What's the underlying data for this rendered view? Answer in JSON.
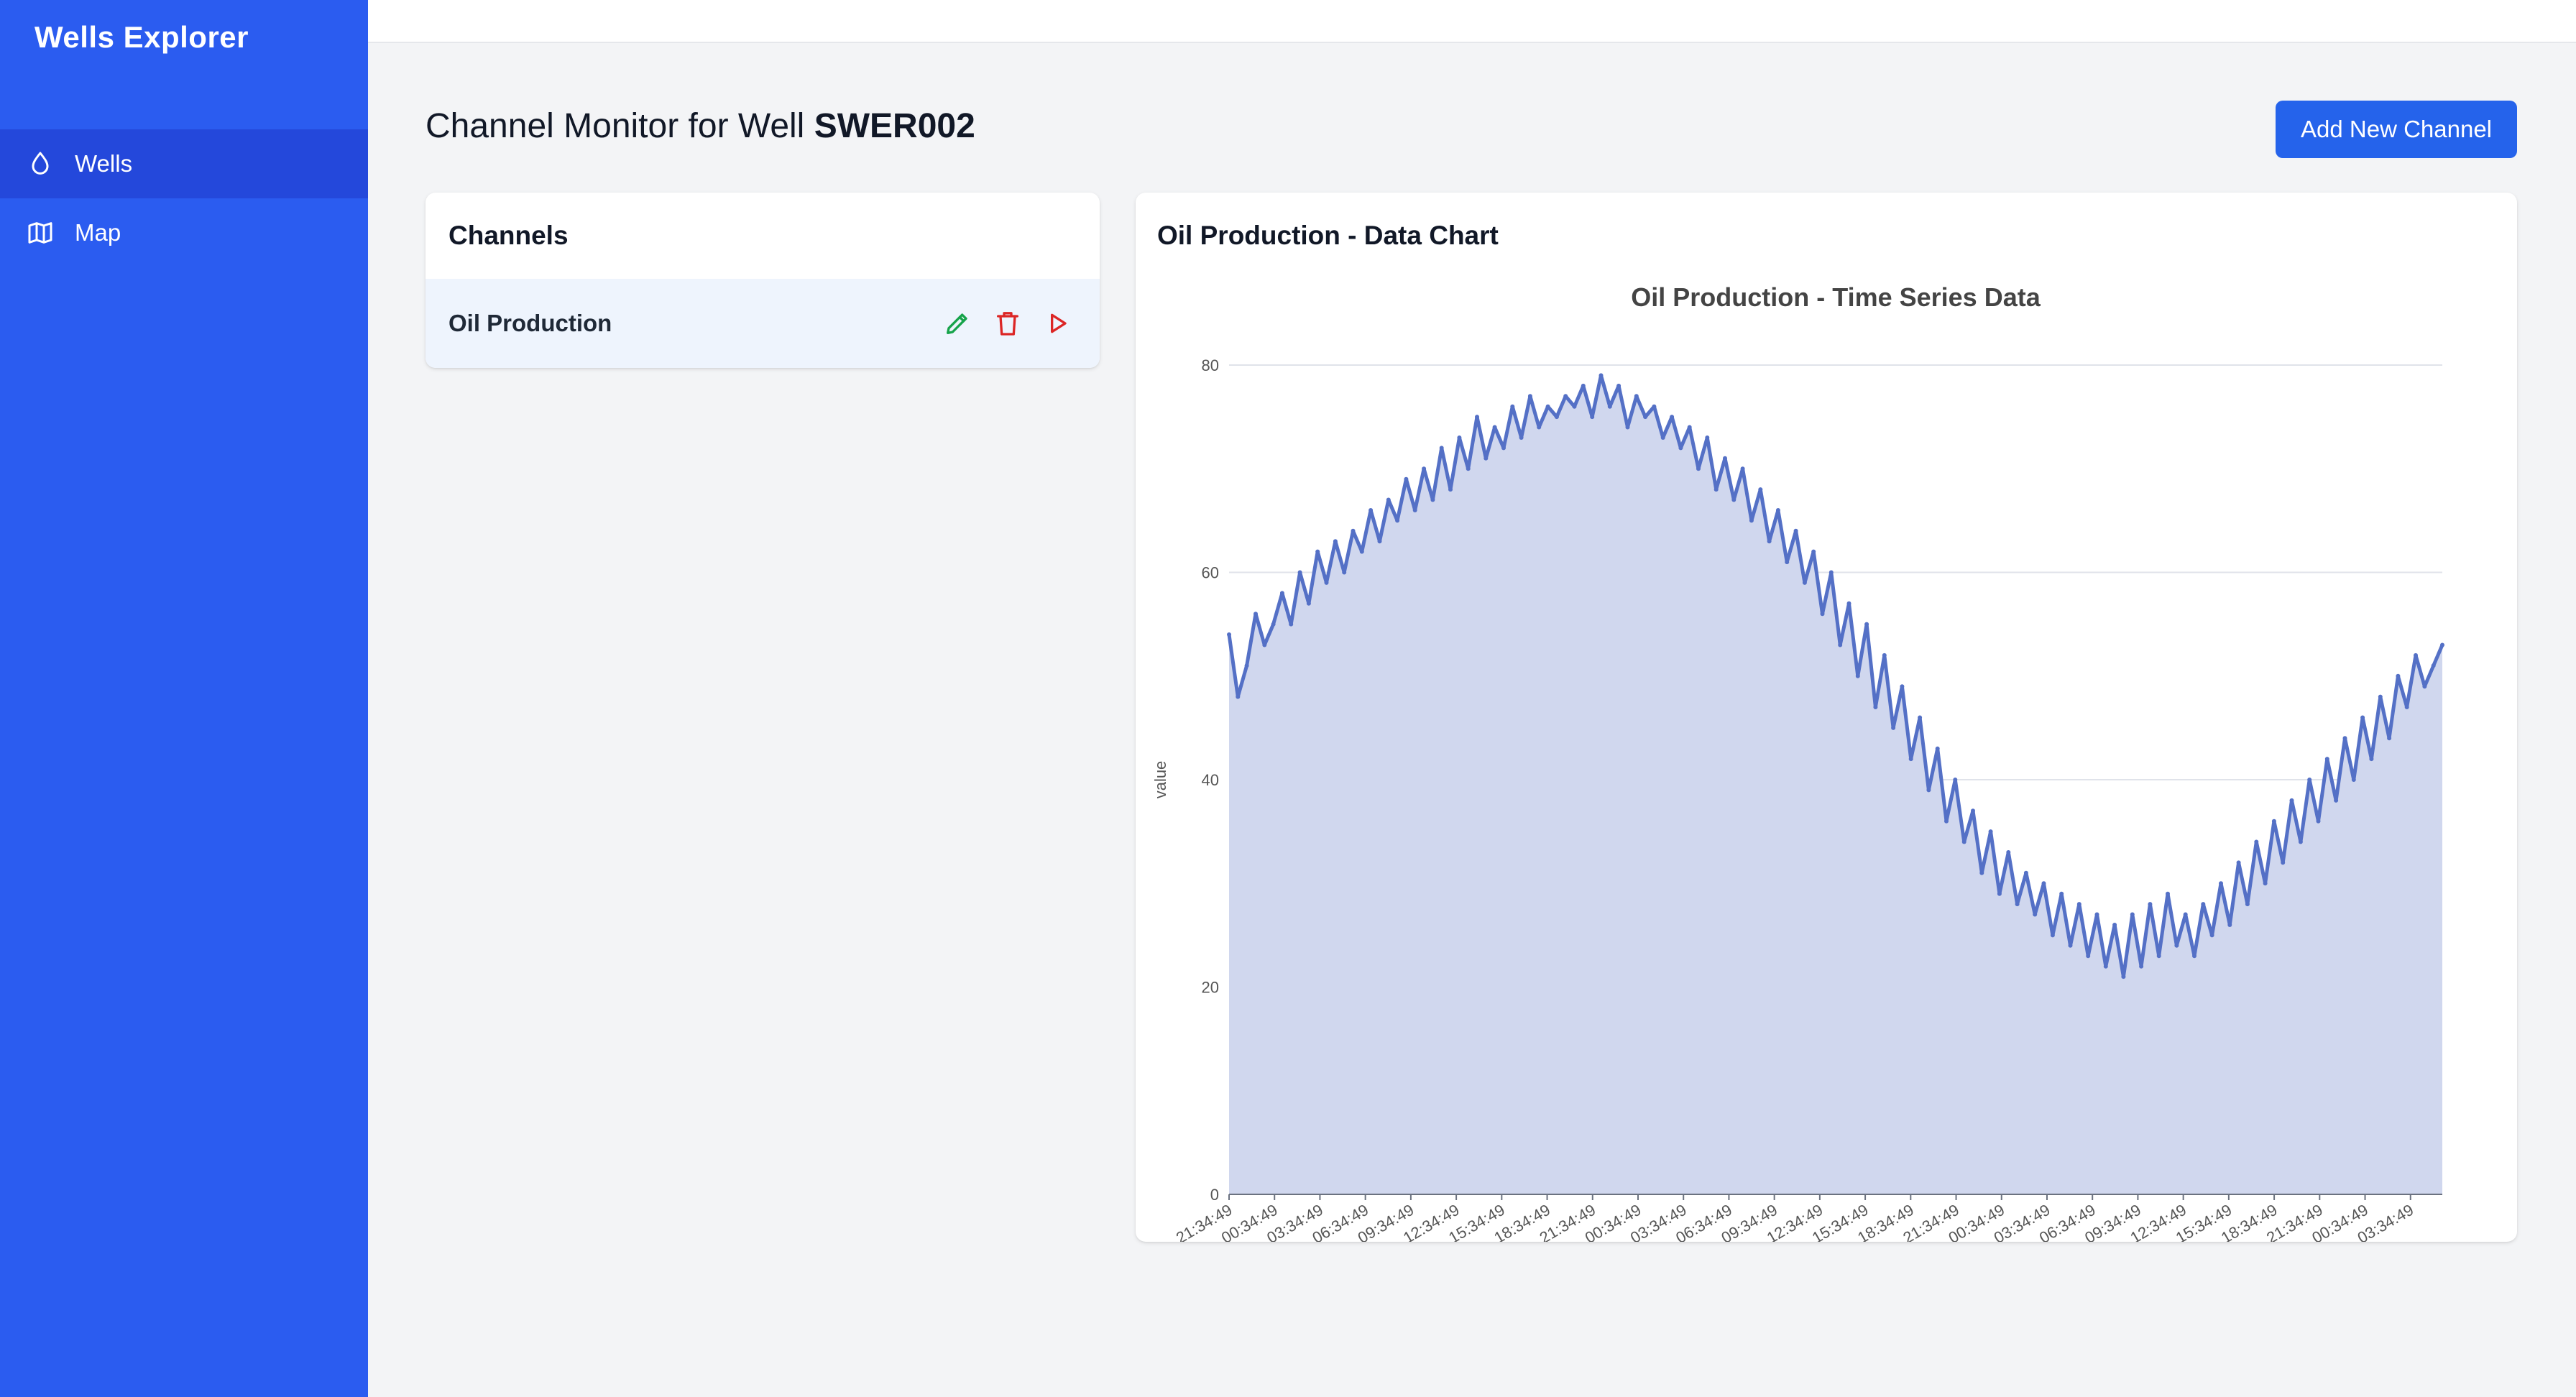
{
  "app": {
    "brand": "Wells Explorer"
  },
  "sidebar": {
    "items": [
      {
        "label": "Wells",
        "icon": "droplet-icon",
        "active": true
      },
      {
        "label": "Map",
        "icon": "map-icon",
        "active": false
      }
    ]
  },
  "header": {
    "title_prefix": "Channel Monitor for Well ",
    "well_id": "SWER002",
    "add_button": "Add New Channel"
  },
  "channels": {
    "title": "Channels",
    "items": [
      {
        "name": "Oil Production",
        "actions": [
          "edit-icon",
          "delete-icon",
          "play-icon"
        ]
      }
    ]
  },
  "colors": {
    "sidebar": "#2b5cf0",
    "sidebar_active": "#2448db",
    "primary": "#2563eb",
    "edit": "#16a34a",
    "delete": "#dc2626",
    "series_line": "#5470c6",
    "series_fill": "#d0d7ee"
  },
  "chart_card": {
    "title": "Oil Production - Data Chart"
  },
  "chart_data": {
    "type": "area",
    "title": "Oil Production - Time Series Data",
    "xlabel": "",
    "ylabel": "value",
    "ylim": [
      0,
      80
    ],
    "yticks": [
      0,
      20,
      40,
      60,
      80
    ],
    "grid": true,
    "x_tick_labels": [
      "21:34:49",
      "00:34:49",
      "03:34:49",
      "06:34:49",
      "09:34:49",
      "12:34:49",
      "15:34:49",
      "18:34:49",
      "21:34:49",
      "00:34:49",
      "03:34:49",
      "06:34:49",
      "09:34:49",
      "12:34:49",
      "15:34:49",
      "18:34:49",
      "21:34:49",
      "00:34:49",
      "03:34:49",
      "06:34:49",
      "09:34:49",
      "12:34:49",
      "15:34:49",
      "18:34:49",
      "21:34:49",
      "00:34:49",
      "03:34:49"
    ],
    "series": [
      {
        "name": "",
        "values": [
          54,
          48,
          51,
          56,
          53,
          55,
          58,
          55,
          60,
          57,
          62,
          59,
          63,
          60,
          64,
          62,
          66,
          63,
          67,
          65,
          69,
          66,
          70,
          67,
          72,
          68,
          73,
          70,
          75,
          71,
          74,
          72,
          76,
          73,
          77,
          74,
          76,
          75,
          77,
          76,
          78,
          75,
          79,
          76,
          78,
          74,
          77,
          75,
          76,
          73,
          75,
          72,
          74,
          70,
          73,
          68,
          71,
          67,
          70,
          65,
          68,
          63,
          66,
          61,
          64,
          59,
          62,
          56,
          60,
          53,
          57,
          50,
          55,
          47,
          52,
          45,
          49,
          42,
          46,
          39,
          43,
          36,
          40,
          34,
          37,
          31,
          35,
          29,
          33,
          28,
          31,
          27,
          30,
          25,
          29,
          24,
          28,
          23,
          27,
          22,
          26,
          21,
          27,
          22,
          28,
          23,
          29,
          24,
          27,
          23,
          28,
          25,
          30,
          26,
          32,
          28,
          34,
          30,
          36,
          32,
          38,
          34,
          40,
          36,
          42,
          38,
          44,
          40,
          46,
          42,
          48,
          44,
          50,
          47,
          52,
          49,
          51,
          53
        ]
      }
    ]
  }
}
